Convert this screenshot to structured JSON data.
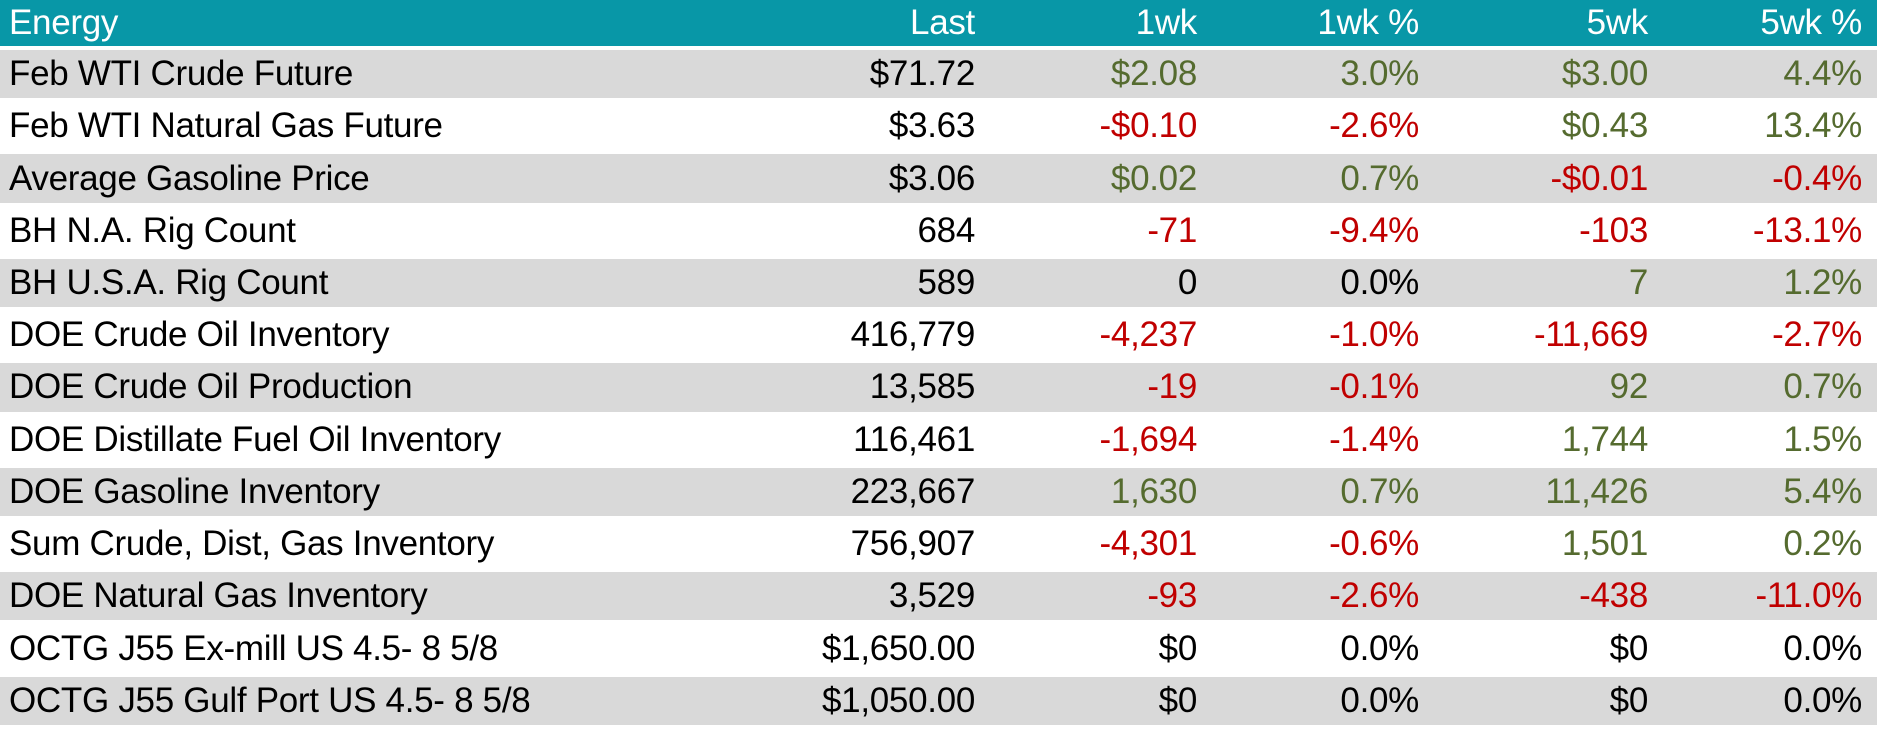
{
  "colors": {
    "header_bg": "#0897A7",
    "header_text": "#FFFFFF",
    "band_bg": "#D9D9D9",
    "positive": "#556B2F",
    "negative": "#C00000",
    "neutral": "#000000"
  },
  "chart_data": {
    "type": "table",
    "title": "Energy",
    "columns": [
      "Energy",
      "Last",
      "1wk",
      "1wk %",
      "5wk",
      "5wk %"
    ],
    "rows": [
      {
        "name": "Feb WTI Crude Future",
        "cells": [
          {
            "t": "$71.72",
            "tone": "flat"
          },
          {
            "t": "$2.08",
            "tone": "pos"
          },
          {
            "t": "3.0%",
            "tone": "pos"
          },
          {
            "t": "$3.00",
            "tone": "pos"
          },
          {
            "t": "4.4%",
            "tone": "pos"
          }
        ]
      },
      {
        "name": "Feb WTI Natural Gas Future",
        "cells": [
          {
            "t": "$3.63",
            "tone": "flat"
          },
          {
            "t": "-$0.10",
            "tone": "neg"
          },
          {
            "t": "-2.6%",
            "tone": "neg"
          },
          {
            "t": "$0.43",
            "tone": "pos"
          },
          {
            "t": "13.4%",
            "tone": "pos"
          }
        ]
      },
      {
        "name": "Average Gasoline Price",
        "cells": [
          {
            "t": "$3.06",
            "tone": "flat"
          },
          {
            "t": "$0.02",
            "tone": "pos"
          },
          {
            "t": "0.7%",
            "tone": "pos"
          },
          {
            "t": "-$0.01",
            "tone": "neg"
          },
          {
            "t": "-0.4%",
            "tone": "neg"
          }
        ]
      },
      {
        "name": "BH N.A. Rig Count",
        "cells": [
          {
            "t": "684",
            "tone": "flat"
          },
          {
            "t": "-71",
            "tone": "neg"
          },
          {
            "t": "-9.4%",
            "tone": "neg"
          },
          {
            "t": "-103",
            "tone": "neg"
          },
          {
            "t": "-13.1%",
            "tone": "neg"
          }
        ]
      },
      {
        "name": "BH U.S.A. Rig Count",
        "cells": [
          {
            "t": "589",
            "tone": "flat"
          },
          {
            "t": "0",
            "tone": "flat"
          },
          {
            "t": "0.0%",
            "tone": "flat"
          },
          {
            "t": "7",
            "tone": "pos"
          },
          {
            "t": "1.2%",
            "tone": "pos"
          }
        ]
      },
      {
        "name": "DOE Crude Oil Inventory",
        "cells": [
          {
            "t": "416,779",
            "tone": "flat"
          },
          {
            "t": "-4,237",
            "tone": "neg"
          },
          {
            "t": "-1.0%",
            "tone": "neg"
          },
          {
            "t": "-11,669",
            "tone": "neg"
          },
          {
            "t": "-2.7%",
            "tone": "neg"
          }
        ]
      },
      {
        "name": "DOE Crude Oil Production",
        "cells": [
          {
            "t": "13,585",
            "tone": "flat"
          },
          {
            "t": "-19",
            "tone": "neg"
          },
          {
            "t": "-0.1%",
            "tone": "neg"
          },
          {
            "t": "92",
            "tone": "pos"
          },
          {
            "t": "0.7%",
            "tone": "pos"
          }
        ]
      },
      {
        "name": "DOE Distillate Fuel Oil Inventory",
        "cells": [
          {
            "t": "116,461",
            "tone": "flat"
          },
          {
            "t": "-1,694",
            "tone": "neg"
          },
          {
            "t": "-1.4%",
            "tone": "neg"
          },
          {
            "t": "1,744",
            "tone": "pos"
          },
          {
            "t": "1.5%",
            "tone": "pos"
          }
        ]
      },
      {
        "name": "DOE Gasoline Inventory",
        "cells": [
          {
            "t": "223,667",
            "tone": "flat"
          },
          {
            "t": "1,630",
            "tone": "pos"
          },
          {
            "t": "0.7%",
            "tone": "pos"
          },
          {
            "t": "11,426",
            "tone": "pos"
          },
          {
            "t": "5.4%",
            "tone": "pos"
          }
        ]
      },
      {
        "name": "Sum Crude, Dist, Gas Inventory",
        "cells": [
          {
            "t": "756,907",
            "tone": "flat"
          },
          {
            "t": "-4,301",
            "tone": "neg"
          },
          {
            "t": "-0.6%",
            "tone": "neg"
          },
          {
            "t": "1,501",
            "tone": "pos"
          },
          {
            "t": "0.2%",
            "tone": "pos"
          }
        ]
      },
      {
        "name": "DOE Natural Gas Inventory",
        "cells": [
          {
            "t": "3,529",
            "tone": "flat"
          },
          {
            "t": "-93",
            "tone": "neg"
          },
          {
            "t": "-2.6%",
            "tone": "neg"
          },
          {
            "t": "-438",
            "tone": "neg"
          },
          {
            "t": "-11.0%",
            "tone": "neg"
          }
        ]
      },
      {
        "name": "OCTG J55 Ex-mill US 4.5- 8 5/8",
        "cells": [
          {
            "t": "$1,650.00",
            "tone": "flat"
          },
          {
            "t": "$0",
            "tone": "flat"
          },
          {
            "t": "0.0%",
            "tone": "flat"
          },
          {
            "t": "$0",
            "tone": "flat"
          },
          {
            "t": "0.0%",
            "tone": "flat"
          }
        ]
      },
      {
        "name": "OCTG J55 Gulf Port US 4.5- 8 5/8",
        "cells": [
          {
            "t": "$1,050.00",
            "tone": "flat"
          },
          {
            "t": "$0",
            "tone": "flat"
          },
          {
            "t": "0.0%",
            "tone": "flat"
          },
          {
            "t": "$0",
            "tone": "flat"
          },
          {
            "t": "0.0%",
            "tone": "flat"
          }
        ]
      }
    ]
  }
}
